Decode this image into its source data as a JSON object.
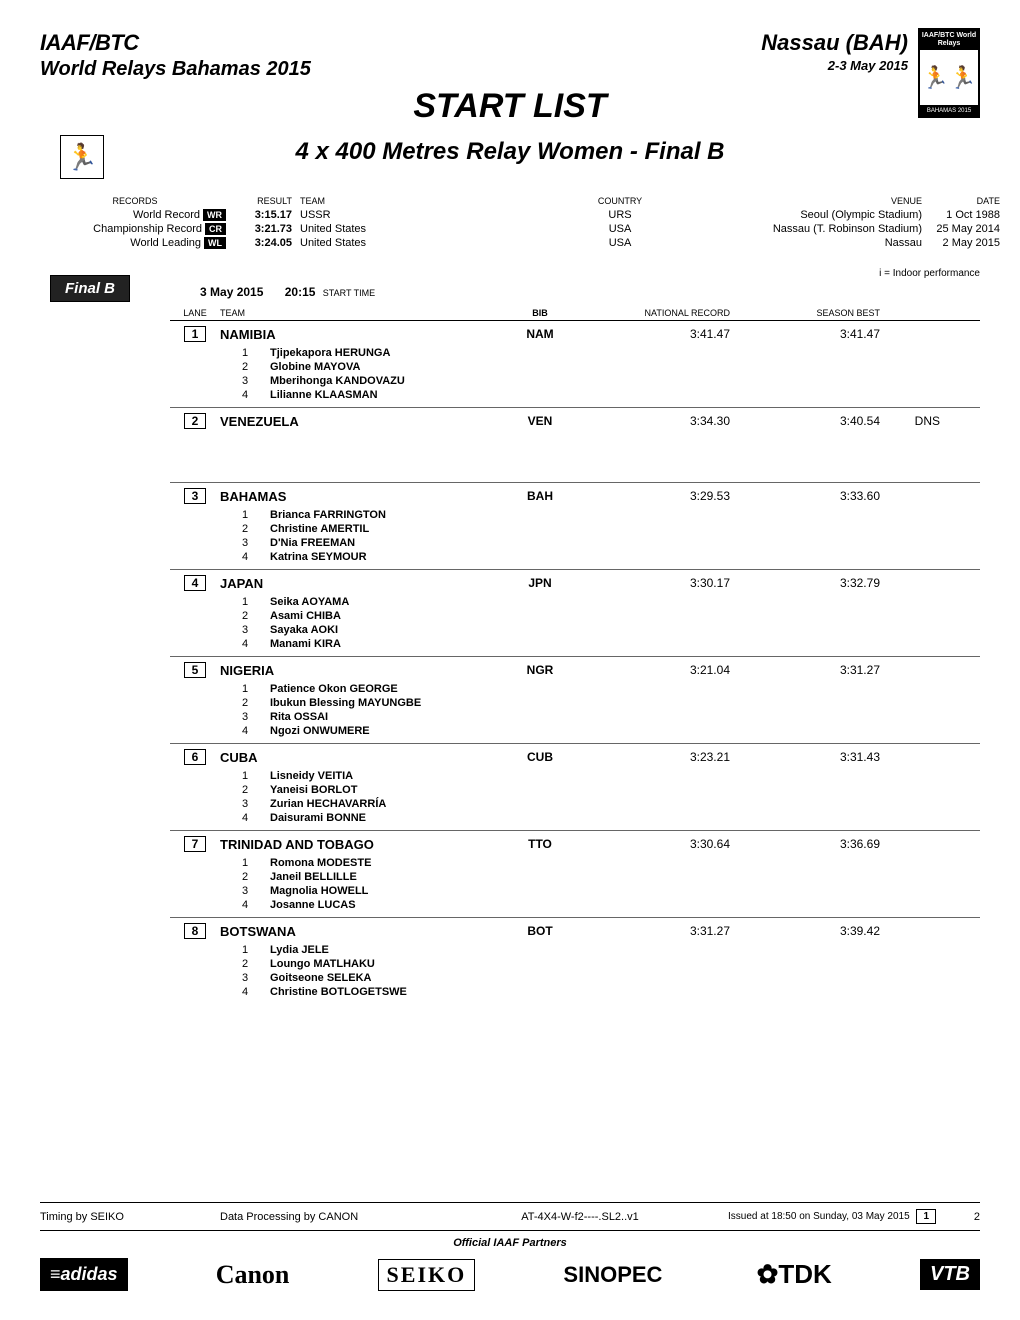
{
  "header": {
    "org_logo": "IAAF/BTC",
    "event_name": "World Relays Bahamas 2015",
    "location": "Nassau (BAH)",
    "dates": "2-3 May 2015",
    "event_logo_top": "IAAF/BTC World Relays",
    "event_logo_bottom": "BAHAMAS 2015"
  },
  "titles": {
    "main": "START LIST",
    "sub": "4 x 400 Metres Relay Women - Final B"
  },
  "records_header": {
    "records": "RECORDS",
    "result": "RESULT",
    "team": "TEAM",
    "country": "COUNTRY",
    "venue": "VENUE",
    "date": "DATE"
  },
  "records": [
    {
      "label": "World Record",
      "badge": "WR",
      "result": "3:15.17",
      "team": "USSR",
      "country": "URS",
      "venue": "Seoul (Olympic Stadium)",
      "date": "1 Oct 1988"
    },
    {
      "label": "Championship Record",
      "badge": "CR",
      "result": "3:21.73",
      "team": "United States",
      "country": "USA",
      "venue": "Nassau (T. Robinson Stadium)",
      "date": "25 May 2014"
    },
    {
      "label": "World Leading",
      "badge": "WL",
      "result": "3:24.05",
      "team": "United States",
      "country": "USA",
      "venue": "Nassau",
      "date": "2 May 2015"
    }
  ],
  "note": "i = Indoor performance",
  "session": {
    "badge": "Final B",
    "date": "3 May  2015",
    "time": "20:15",
    "time_label": "START TIME"
  },
  "lane_header": {
    "lane": "LANE",
    "team": "TEAM",
    "bib": "BIB",
    "nr": "NATIONAL RECORD",
    "sb": "SEASON BEST"
  },
  "lanes": [
    {
      "lane": "1",
      "team": "NAMIBIA",
      "bib": "NAM",
      "nr": "3:41.47",
      "sb": "3:41.47",
      "status": "",
      "athletes": [
        {
          "n": "1",
          "name": "Tjipekapora HERUNGA"
        },
        {
          "n": "2",
          "name": "Globine MAYOVA"
        },
        {
          "n": "3",
          "name": "Mberihonga KANDOVAZU"
        },
        {
          "n": "4",
          "name": "Lilianne KLAASMAN"
        }
      ]
    },
    {
      "lane": "2",
      "team": "VENEZUELA",
      "bib": "VEN",
      "nr": "3:34.30",
      "sb": "3:40.54",
      "status": "DNS",
      "athletes": [],
      "big_gap": true
    },
    {
      "lane": "3",
      "team": "BAHAMAS",
      "bib": "BAH",
      "nr": "3:29.53",
      "sb": "3:33.60",
      "status": "",
      "athletes": [
        {
          "n": "1",
          "name": "Brianca FARRINGTON"
        },
        {
          "n": "2",
          "name": "Christine AMERTIL"
        },
        {
          "n": "3",
          "name": "D'Nia FREEMAN"
        },
        {
          "n": "4",
          "name": "Katrina SEYMOUR"
        }
      ]
    },
    {
      "lane": "4",
      "team": "JAPAN",
      "bib": "JPN",
      "nr": "3:30.17",
      "sb": "3:32.79",
      "status": "",
      "athletes": [
        {
          "n": "1",
          "name": "Seika AOYAMA"
        },
        {
          "n": "2",
          "name": "Asami CHIBA"
        },
        {
          "n": "3",
          "name": "Sayaka AOKI"
        },
        {
          "n": "4",
          "name": "Manami KIRA"
        }
      ]
    },
    {
      "lane": "5",
      "team": "NIGERIA",
      "bib": "NGR",
      "nr": "3:21.04",
      "sb": "3:31.27",
      "status": "",
      "athletes": [
        {
          "n": "1",
          "name": "Patience Okon GEORGE"
        },
        {
          "n": "2",
          "name": "Ibukun Blessing MAYUNGBE"
        },
        {
          "n": "3",
          "name": "Rita OSSAI"
        },
        {
          "n": "4",
          "name": "Ngozi ONWUMERE"
        }
      ]
    },
    {
      "lane": "6",
      "team": "CUBA",
      "bib": "CUB",
      "nr": "3:23.21",
      "sb": "3:31.43",
      "status": "",
      "athletes": [
        {
          "n": "1",
          "name": "Lisneidy VEITIA"
        },
        {
          "n": "2",
          "name": "Yaneisi BORLOT"
        },
        {
          "n": "3",
          "name": "Zurian HECHAVARRÍA"
        },
        {
          "n": "4",
          "name": "Daisurami BONNE"
        }
      ]
    },
    {
      "lane": "7",
      "team": "TRINIDAD AND TOBAGO",
      "bib": "TTO",
      "nr": "3:30.64",
      "sb": "3:36.69",
      "status": "",
      "athletes": [
        {
          "n": "1",
          "name": "Romona MODESTE"
        },
        {
          "n": "2",
          "name": "Janeil BELLILLE"
        },
        {
          "n": "3",
          "name": "Magnolia HOWELL"
        },
        {
          "n": "4",
          "name": "Josanne LUCAS"
        }
      ]
    },
    {
      "lane": "8",
      "team": "BOTSWANA",
      "bib": "BOT",
      "nr": "3:31.27",
      "sb": "3:39.42",
      "status": "",
      "athletes": [
        {
          "n": "1",
          "name": "Lydia JELE"
        },
        {
          "n": "2",
          "name": "Loungo MATLHAKU"
        },
        {
          "n": "3",
          "name": "Goitseone SELEKA"
        },
        {
          "n": "4",
          "name": "Christine BOTLOGETSWE"
        }
      ],
      "no_border": true
    }
  ],
  "footer": {
    "timing": "Timing by SEIKO",
    "processing": "Data Processing by CANON",
    "code": "AT-4X4-W-f2----.SL2..v1",
    "issued": "Issued at 18:50 on Sunday, 03 May  2015",
    "page_current": "1",
    "page_total": "2",
    "partners_label": "Official IAAF Partners",
    "partners": [
      "≡adidas",
      "Canon",
      "SEIKO",
      "SINOPEC",
      "✿TDK",
      "VTB"
    ]
  }
}
